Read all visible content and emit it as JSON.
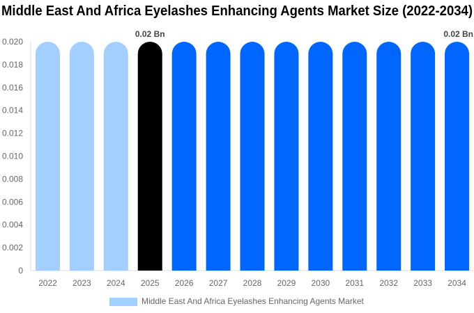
{
  "chart_data": {
    "type": "bar",
    "title": "Middle East And Africa Eyelashes Enhancing Agents Market Size (2022-2034)",
    "categories": [
      "2022",
      "2023",
      "2024",
      "2025",
      "2026",
      "2027",
      "2028",
      "2029",
      "2030",
      "2031",
      "2032",
      "2033",
      "2034"
    ],
    "series": [
      {
        "name": "Middle East And Africa Eyelashes Enhancing Agents Market",
        "values": [
          0.02,
          0.02,
          0.02,
          0.02,
          0.02,
          0.02,
          0.02,
          0.02,
          0.02,
          0.02,
          0.02,
          0.02,
          0.02
        ]
      }
    ],
    "bar_colors": [
      "#a3cfff",
      "#a3cfff",
      "#a3cfff",
      "#000000",
      "#0066ff",
      "#0066ff",
      "#0066ff",
      "#0066ff",
      "#0066ff",
      "#0066ff",
      "#0066ff",
      "#0066ff",
      "#0066ff"
    ],
    "data_labels": [
      {
        "category": "2025",
        "text": "0.02 Bn"
      },
      {
        "category": "2034",
        "text": "0.02 Bn"
      }
    ],
    "yticks": [
      "0",
      "0.002",
      "0.004",
      "0.006",
      "0.008",
      "0.010",
      "0.012",
      "0.014",
      "0.016",
      "0.018",
      "0.020"
    ],
    "ylim": [
      0,
      0.02
    ],
    "xlabel": "",
    "ylabel": "",
    "grid": false,
    "legend_position": "bottom",
    "legend_color": "#a3cfff"
  }
}
